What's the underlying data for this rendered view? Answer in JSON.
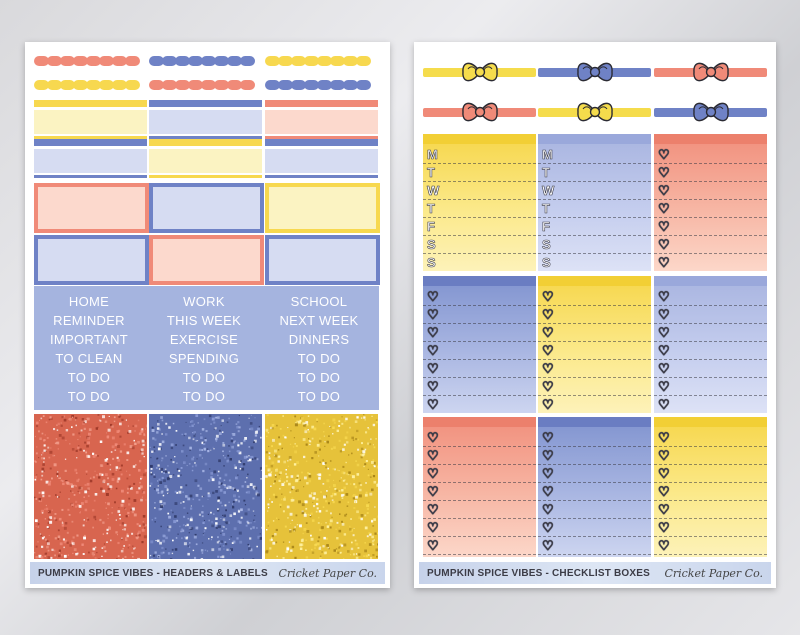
{
  "colors": {
    "yellow": "#f7d84f",
    "blue": "#6f82c6",
    "coral": "#f08a78",
    "light_yellow": "#fbf3c2",
    "light_blue": "#d6dcf2",
    "light_coral": "#fcd9cd",
    "label_bg": "#a5b4df"
  },
  "left_sheet": {
    "labels_columns": [
      [
        "HOME",
        "REMINDER",
        "IMPORTANT",
        "TO CLEAN",
        "TO DO",
        "TO DO"
      ],
      [
        "WORK",
        "THIS WEEK",
        "EXERCISE",
        "SPENDING",
        "TO DO",
        "TO DO"
      ],
      [
        "SCHOOL",
        "NEXT WEEK",
        "DINNERS",
        "TO DO",
        "TO DO",
        "TO DO"
      ]
    ],
    "footer_title": "PUMPKIN SPICE VIBES - HEADERS & LABELS",
    "footer_brand": "Cricket Paper Co."
  },
  "right_sheet": {
    "weekdays": [
      "M",
      "T",
      "W",
      "T",
      "F",
      "S",
      "S"
    ],
    "footer_title": "PUMPKIN SPICE VIBES - CHECKLIST BOXES",
    "footer_brand": "Cricket Paper Co."
  }
}
